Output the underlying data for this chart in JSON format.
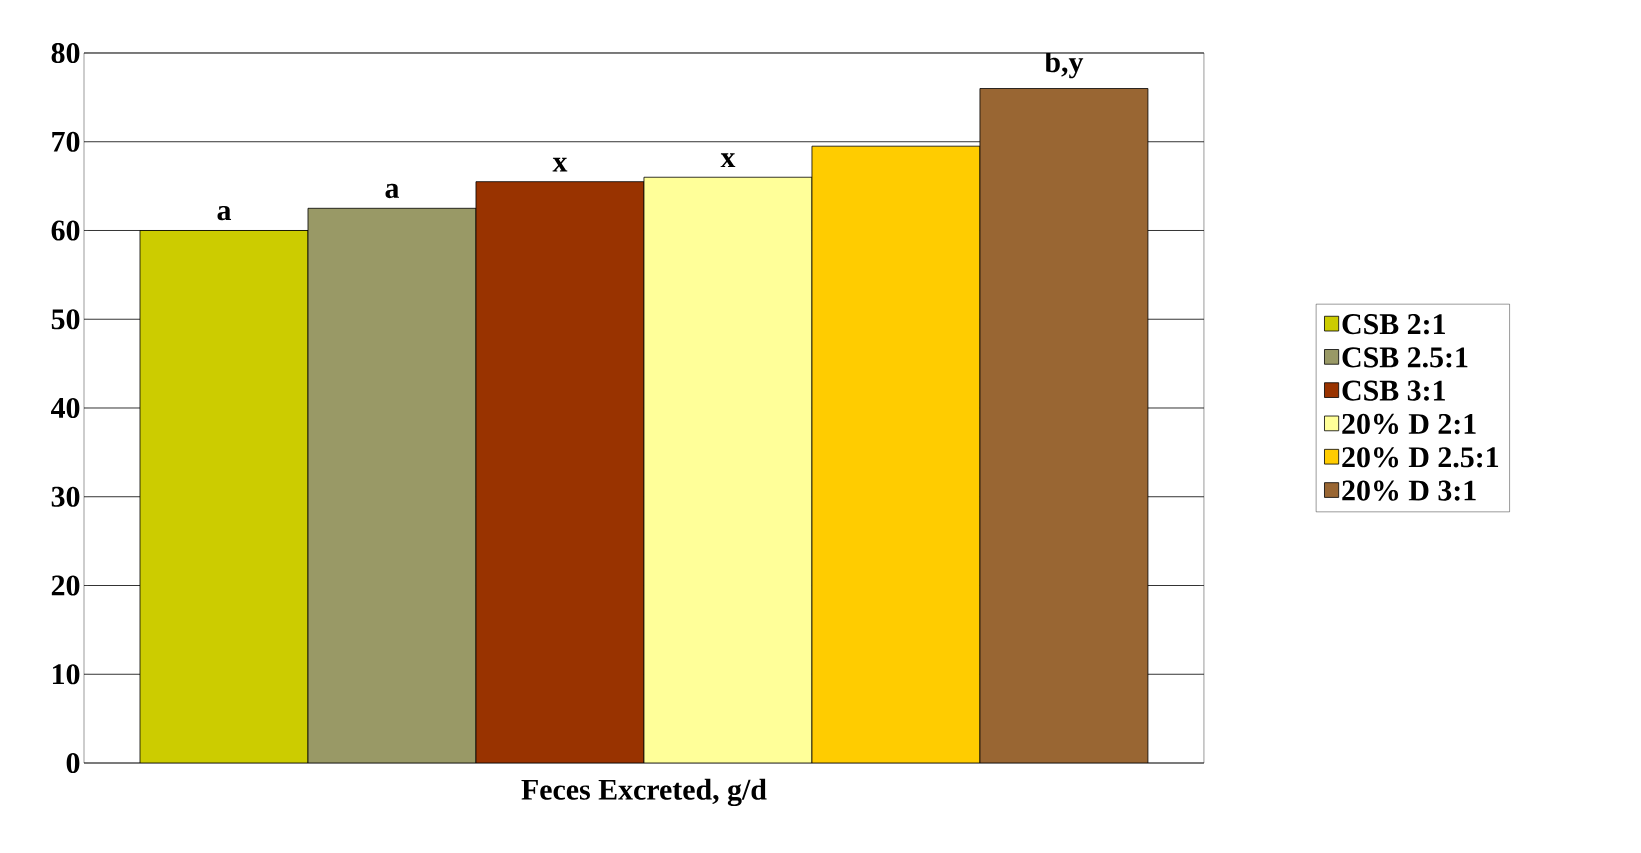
{
  "chart_data": {
    "type": "bar",
    "xlabel": null,
    "categories": [
      "Feces Excreted, g/d"
    ],
    "series": [
      {
        "name": "CSB 2:1",
        "color": "#cccc00",
        "values": [
          60
        ],
        "value_labels": [
          "a"
        ]
      },
      {
        "name": "CSB 2.5:1",
        "color": "#999966",
        "values": [
          62.5
        ],
        "value_labels": [
          "a"
        ]
      },
      {
        "name": "CSB 3:1",
        "color": "#993300",
        "values": [
          65.5
        ],
        "value_labels": [
          "x"
        ]
      },
      {
        "name": "20% D 2:1",
        "color": "#ffff99",
        "values": [
          66
        ],
        "value_labels": [
          "x"
        ]
      },
      {
        "name": "20% D 2.5:1",
        "color": "#ffcc00",
        "values": [
          69.5
        ],
        "value_labels": [
          null
        ]
      },
      {
        "name": "20% D 3:1",
        "color": "#996633",
        "values": [
          76
        ],
        "value_labels": [
          "b,y"
        ]
      }
    ],
    "ylim": [
      0,
      80
    ],
    "yticks": [
      0,
      10,
      20,
      30,
      40,
      50,
      60,
      70,
      80
    ],
    "grid": "y",
    "legend": "right"
  }
}
